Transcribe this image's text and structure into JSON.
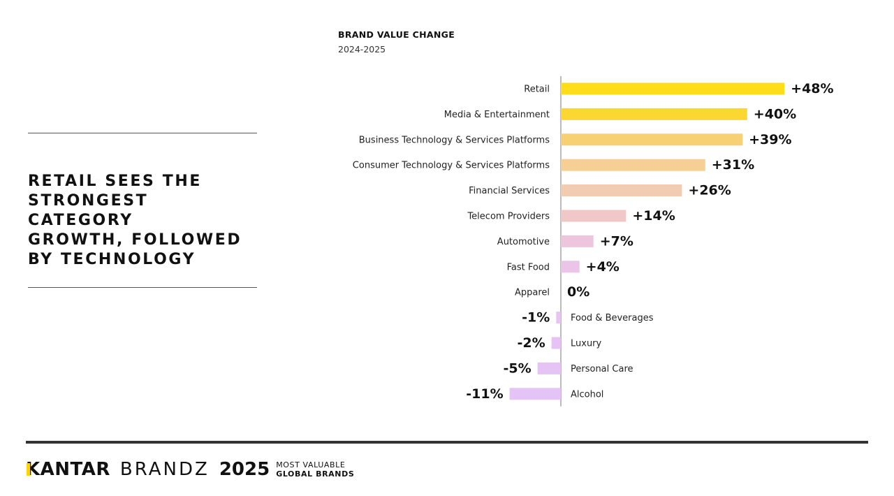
{
  "headline": {
    "lines": [
      "RETAIL SEES THE",
      "STRONGEST CATEGORY",
      "GROWTH, FOLLOWED",
      "BY TECHNOLOGY"
    ]
  },
  "chart_data": {
    "type": "bar",
    "orientation": "horizontal",
    "title": "BRAND VALUE CHANGE",
    "subtitle": "2024-2025",
    "unit": "%",
    "xlim": [
      -11,
      48
    ],
    "categories": [
      "Retail",
      "Media & Entertainment",
      "Business Technology & Services Platforms",
      "Consumer Technology & Services Platforms",
      "Financial Services",
      "Telecom Providers",
      "Automotive",
      "Fast Food",
      "Apparel",
      "Food & Beverages",
      "Luxury",
      "Personal Care",
      "Alcohol"
    ],
    "values": [
      48,
      40,
      39,
      31,
      26,
      14,
      7,
      4,
      0,
      -1,
      -2,
      -5,
      -11
    ],
    "labels": [
      "+48%",
      "+40%",
      "+39%",
      "+31%",
      "+26%",
      "+14%",
      "+7%",
      "+4%",
      "0%",
      "-1%",
      "-2%",
      "-5%",
      "-11%"
    ],
    "colors": [
      "#FFDE17",
      "#FCD731",
      "#F6D073",
      "#F5CF94",
      "#F2CCB1",
      "#F0C8C8",
      "#EDC6DD",
      "#EBC5E7",
      "#E9C4EE",
      "#E7C4F1",
      "#E6C3F3",
      "#E5C3F5",
      "#E4C3F7"
    ]
  },
  "footer": {
    "kantar": "KANTAR",
    "brandz": "BRANDZ",
    "year": "2025",
    "tagline_1": "MOST VALUABLE",
    "tagline_2": "GLOBAL BRANDS"
  }
}
